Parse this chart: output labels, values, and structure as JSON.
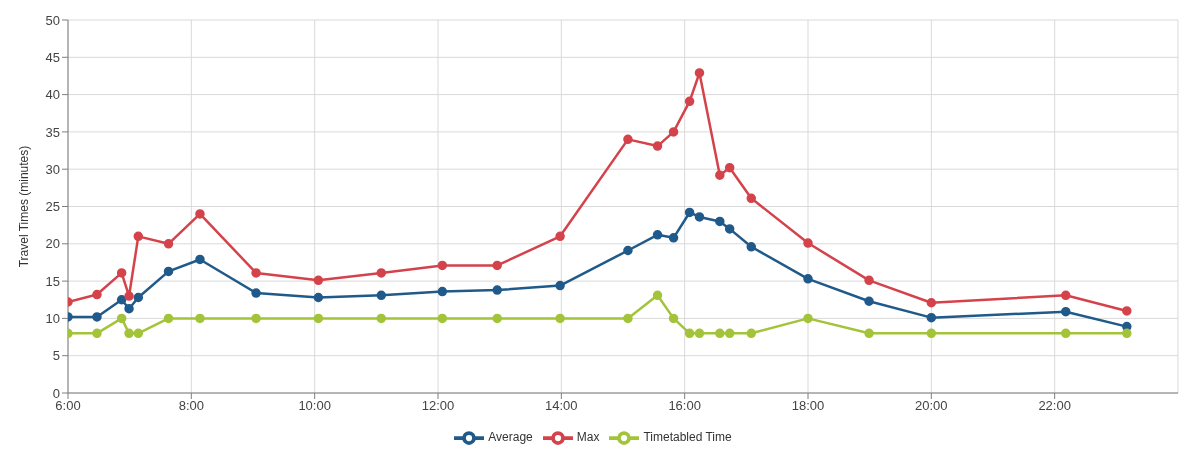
{
  "chart_data": {
    "type": "line",
    "ylabel": "Travel Times (minutes)",
    "xlim": [
      6,
      24
    ],
    "xticks": [
      {
        "value": 6,
        "label": "6:00"
      },
      {
        "value": 8,
        "label": "8:00"
      },
      {
        "value": 10,
        "label": "10:00"
      },
      {
        "value": 12,
        "label": "12:00"
      },
      {
        "value": 14,
        "label": "14:00"
      },
      {
        "value": 16,
        "label": "16:00"
      },
      {
        "value": 18,
        "label": "18:00"
      },
      {
        "value": 20,
        "label": "20:00"
      },
      {
        "value": 22,
        "label": "22:00"
      }
    ],
    "ylim": [
      0,
      50
    ],
    "yticks": [
      0,
      5,
      10,
      15,
      20,
      25,
      30,
      35,
      40,
      45,
      50
    ],
    "x": [
      6.0,
      6.47,
      6.87,
      6.99,
      7.14,
      7.63,
      8.14,
      9.05,
      10.06,
      11.08,
      12.07,
      12.96,
      13.98,
      15.08,
      15.56,
      15.82,
      16.08,
      16.24,
      16.57,
      16.73,
      17.08,
      18.0,
      18.99,
      20.0,
      22.18,
      23.17
    ],
    "series": [
      {
        "name": "Average",
        "color": "#1f5a8a",
        "values": [
          10.2,
          10.2,
          12.5,
          11.3,
          12.8,
          16.3,
          17.9,
          13.4,
          12.8,
          13.1,
          13.6,
          13.8,
          14.4,
          19.1,
          21.2,
          20.8,
          24.2,
          23.6,
          23,
          22,
          19.6,
          15.3,
          12.3,
          10.1,
          10.9,
          8.9
        ]
      },
      {
        "name": "Max",
        "color": "#d4434b",
        "values": [
          12.2,
          13.2,
          16.1,
          13,
          21,
          20,
          24,
          16.1,
          15.1,
          16.1,
          17.1,
          17.1,
          21,
          34,
          33.1,
          35,
          39.1,
          42.9,
          29.2,
          30.2,
          26.1,
          20.1,
          15.1,
          12.1,
          13.1,
          11
        ]
      },
      {
        "name": "Timetabled Time",
        "color": "#a3c43a",
        "values": [
          8,
          8,
          10,
          8,
          8,
          10,
          10,
          10,
          10,
          10,
          10,
          10,
          10,
          10,
          13.1,
          10,
          8,
          8,
          8,
          8,
          8,
          10,
          8,
          8,
          8,
          8
        ]
      }
    ],
    "grid": true,
    "legend": "bottom",
    "marker": "circle",
    "line_style": "solid"
  }
}
